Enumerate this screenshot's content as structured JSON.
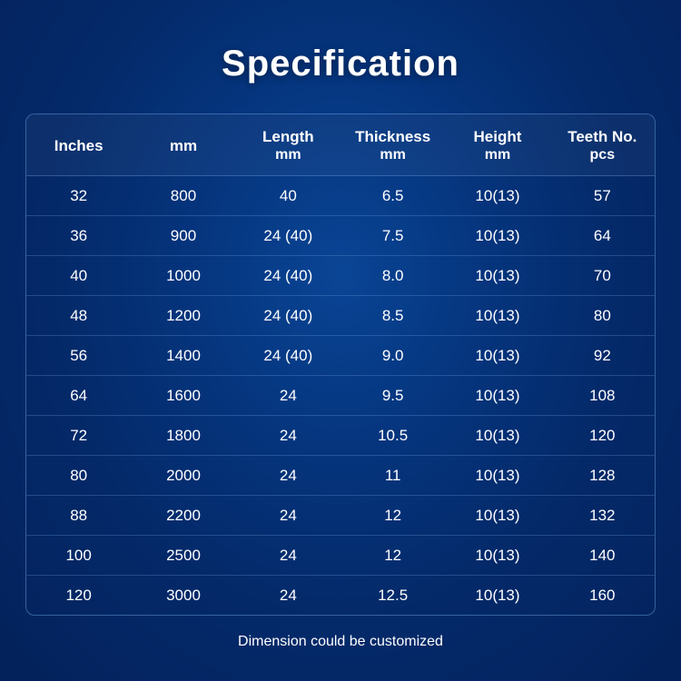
{
  "title": "Specification",
  "footer_note": "Dimension could be customized",
  "table": {
    "type": "table",
    "background_color": "#05357e",
    "border_color": "#6a9bd4",
    "text_color": "#ffffff",
    "header_fontsize": 17,
    "cell_fontsize": 17,
    "columns": [
      {
        "label": "Inches",
        "sub": ""
      },
      {
        "label": "mm",
        "sub": ""
      },
      {
        "label": "Length",
        "sub": "mm"
      },
      {
        "label": "Thickness",
        "sub": "mm"
      },
      {
        "label": "Height",
        "sub": "mm"
      },
      {
        "label": "Teeth No.",
        "sub": "pcs"
      }
    ],
    "rows": [
      [
        "32",
        "800",
        "40",
        "6.5",
        "10(13)",
        "57"
      ],
      [
        "36",
        "900",
        "24 (40)",
        "7.5",
        "10(13)",
        "64"
      ],
      [
        "40",
        "1000",
        "24 (40)",
        "8.0",
        "10(13)",
        "70"
      ],
      [
        "48",
        "1200",
        "24 (40)",
        "8.5",
        "10(13)",
        "80"
      ],
      [
        "56",
        "1400",
        "24 (40)",
        "9.0",
        "10(13)",
        "92"
      ],
      [
        "64",
        "1600",
        "24",
        "9.5",
        "10(13)",
        "108"
      ],
      [
        "72",
        "1800",
        "24",
        "10.5",
        "10(13)",
        "120"
      ],
      [
        "80",
        "2000",
        "24",
        "11",
        "10(13)",
        "128"
      ],
      [
        "88",
        "2200",
        "24",
        "12",
        "10(13)",
        "132"
      ],
      [
        "100",
        "2500",
        "24",
        "12",
        "10(13)",
        "140"
      ],
      [
        "120",
        "3000",
        "24",
        "12.5",
        "10(13)",
        "160"
      ]
    ]
  },
  "style": {
    "title_fontsize": 40,
    "title_color": "#ffffff",
    "page_gradient_inner": "#0b4a9e",
    "page_gradient_outer": "#03215a",
    "row_border_color": "rgba(120,170,230,0.28)"
  }
}
